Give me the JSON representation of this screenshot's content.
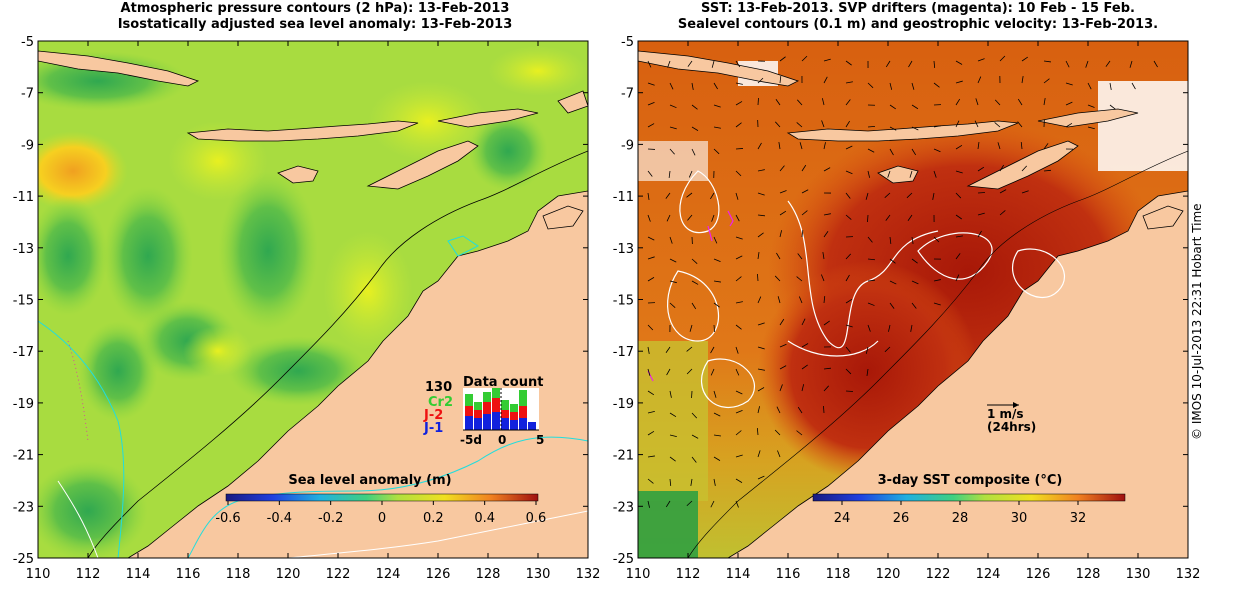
{
  "left_panel": {
    "title_line1": "Atmospheric pressure contours (2 hPa): 13-Feb-2013",
    "title_line2": "Isostatically adjusted sea level anomaly: 13-Feb-2013",
    "y_ticks": [
      "-5",
      "-7",
      "-9",
      "-11",
      "-13",
      "-15",
      "-17",
      "-19",
      "-21",
      "-23",
      "-25"
    ],
    "x_ticks": [
      "110",
      "112",
      "114",
      "116",
      "118",
      "120",
      "122",
      "124",
      "126",
      "128",
      "130",
      "132"
    ],
    "colorbar": {
      "label": "Sea level anomaly (m)",
      "ticks": [
        "-0.6",
        "-0.4",
        "-0.2",
        "0",
        "0.2",
        "0.4",
        "0.6"
      ]
    },
    "data_count": {
      "title": "Data count",
      "max_label": "130",
      "missions": [
        "Cr2",
        "J-2",
        "J-1"
      ],
      "mission_colors": [
        "#33cc33",
        "#ee1111",
        "#1122dd"
      ],
      "axis_ticks": [
        "-5d",
        "0",
        "5"
      ]
    }
  },
  "right_panel": {
    "title_line1": "SST: 13-Feb-2013. SVP drifters (magenta): 10 Feb - 15 Feb.",
    "title_line2": "Sealevel contours (0.1 m) and geostrophic velocity: 13-Feb-2013.",
    "y_ticks": [
      "-5",
      "-7",
      "-9",
      "-11",
      "-13",
      "-15",
      "-17",
      "-19",
      "-21",
      "-23",
      "-25"
    ],
    "x_ticks": [
      "110",
      "112",
      "114",
      "116",
      "118",
      "120",
      "122",
      "124",
      "126",
      "128",
      "130",
      "132"
    ],
    "velocity_key": {
      "speed": "1 m/s",
      "period": "(24hrs)"
    },
    "colorbar": {
      "label": "3-day SST composite (°C)",
      "ticks": [
        "24",
        "26",
        "28",
        "30",
        "32"
      ]
    }
  },
  "credit": "© IMOS 10-Jul-2013 22:31 Hobart Time",
  "colors": {
    "land": "#f8c8a0",
    "coast": "#000000",
    "contour_cyan": "#22dddd"
  }
}
